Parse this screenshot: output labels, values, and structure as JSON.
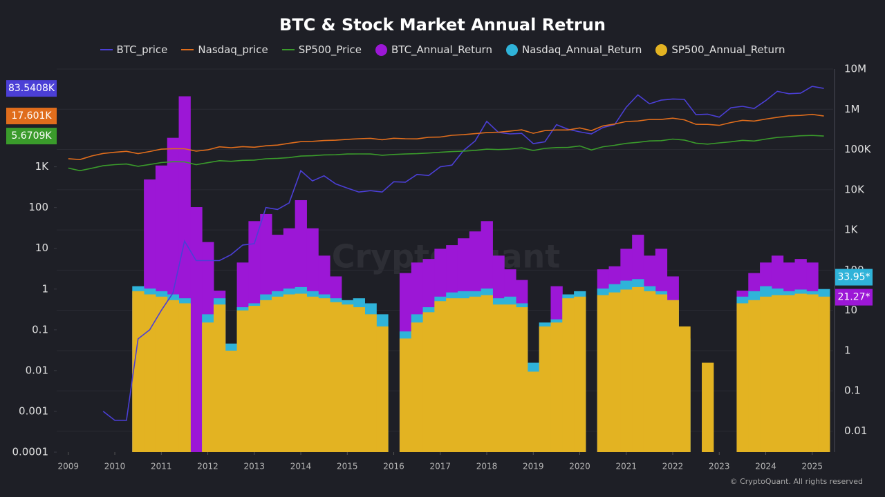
{
  "chart_data": {
    "type": "line",
    "title": "BTC & Stock Market Annual Retrun",
    "log_scale": true,
    "grid": true,
    "xlim": [
      2008.75,
      2025.45
    ],
    "xticks": [
      2009,
      2010,
      2011,
      2012,
      2013,
      2014,
      2015,
      2016,
      2017,
      2018,
      2019,
      2020,
      2021,
      2022,
      2023,
      2024,
      2025
    ],
    "ylim": [
      0.0001,
      250000
    ],
    "yticks": [
      0.0001,
      0.001,
      0.01,
      0.1,
      1,
      10,
      100,
      {
        "value": 1000,
        "label": "1K"
      }
    ],
    "y2lim": [
      0.003,
      10000000
    ],
    "y2ticks": [
      0.01,
      0.1,
      1,
      10,
      100,
      {
        "value": 1000,
        "label": "1K"
      },
      {
        "value": 10000,
        "label": "10K"
      },
      {
        "value": 100000,
        "label": "100K"
      },
      {
        "value": 1000000,
        "label": "1M"
      },
      {
        "value": 10000000,
        "label": "10M"
      }
    ],
    "x": [
      2009,
      2009.25,
      2009.5,
      2009.75,
      2010,
      2010.25,
      2010.5,
      2010.75,
      2011,
      2011.25,
      2011.5,
      2011.75,
      2012,
      2012.25,
      2012.5,
      2012.75,
      2013,
      2013.25,
      2013.5,
      2013.75,
      2014,
      2014.25,
      2014.5,
      2014.75,
      2015,
      2015.25,
      2015.5,
      2015.75,
      2016,
      2016.25,
      2016.5,
      2016.75,
      2017,
      2017.25,
      2017.5,
      2017.75,
      2018,
      2018.25,
      2018.5,
      2018.75,
      2019,
      2019.25,
      2019.5,
      2019.75,
      2020,
      2020.25,
      2020.5,
      2020.75,
      2021,
      2021.25,
      2021.5,
      2021.75,
      2022,
      2022.25,
      2022.5,
      2022.75,
      2023,
      2023.25,
      2023.5,
      2023.75,
      2024,
      2024.25,
      2024.5,
      2024.75,
      2025,
      2025.25
    ],
    "series": [
      {
        "name": "BTC_price",
        "type": "line",
        "axis": "y",
        "color": "#4b3fd6",
        "last_label": "83.5408K",
        "values": [
          null,
          null,
          null,
          0.001,
          0.0006,
          0.0006,
          0.06,
          0.1,
          0.3,
          0.8,
          15,
          5,
          5,
          5,
          7,
          12,
          13,
          100,
          90,
          130,
          800,
          450,
          600,
          380,
          300,
          240,
          260,
          240,
          430,
          420,
          650,
          610,
          1000,
          1100,
          2500,
          4300,
          13000,
          7000,
          6400,
          6600,
          3700,
          4100,
          10800,
          8300,
          7200,
          6400,
          9200,
          10800,
          29000,
          58000,
          35000,
          43000,
          46000,
          45000,
          19000,
          19500,
          16500,
          28000,
          30500,
          27000,
          42000,
          71000,
          62000,
          64000,
          94000,
          83540.8
        ]
      },
      {
        "name": "Nasdaq_price",
        "type": "line",
        "axis": "y",
        "color": "#e06d1c",
        "last_label": "17.601K",
        "values": [
          1580,
          1500,
          1840,
          2120,
          2270,
          2400,
          2110,
          2370,
          2700,
          2780,
          2770,
          2420,
          2600,
          3090,
          2930,
          3120,
          3020,
          3270,
          3400,
          3770,
          4140,
          4200,
          4410,
          4490,
          4700,
          4880,
          4990,
          4620,
          5000,
          4870,
          4840,
          5310,
          5380,
          5910,
          6140,
          6500,
          6900,
          7060,
          7510,
          8050,
          6640,
          7730,
          8000,
          8000,
          8970,
          7700,
          10060,
          11170,
          12900,
          13250,
          14500,
          14450,
          15600,
          14200,
          11000,
          10970,
          10390,
          12200,
          13800,
          13200,
          14800,
          16380,
          17880,
          18190,
          19300,
          17601
        ]
      },
      {
        "name": "SP500_Price",
        "type": "line",
        "axis": "y",
        "color": "#3a9b2b",
        "last_label": "5.6709K",
        "values": [
          930,
          800,
          920,
          1060,
          1130,
          1170,
          1030,
          1140,
          1270,
          1330,
          1320,
          1130,
          1260,
          1410,
          1360,
          1440,
          1460,
          1570,
          1610,
          1680,
          1830,
          1870,
          1960,
          1970,
          2060,
          2070,
          2060,
          1920,
          2000,
          2060,
          2100,
          2170,
          2270,
          2360,
          2420,
          2520,
          2700,
          2640,
          2720,
          2920,
          2500,
          2830,
          2960,
          2980,
          3250,
          2580,
          3100,
          3360,
          3750,
          3970,
          4300,
          4360,
          4770,
          4530,
          3790,
          3590,
          3850,
          4110,
          4450,
          4290,
          4770,
          5250,
          5480,
          5760,
          5880,
          5670.9
        ]
      },
      {
        "name": "BTC_Annual_Return",
        "type": "bar",
        "axis": "y2",
        "color": "#9c17d6",
        "last_label": "21.27*",
        "values": [
          null,
          null,
          null,
          null,
          null,
          null,
          20,
          18000,
          40000,
          195000,
          2100000,
          3700,
          500,
          31,
          null,
          155,
          1660,
          2500,
          760,
          1100,
          5500,
          1100,
          230,
          70,
          null,
          null,
          null,
          null,
          null,
          85,
          155,
          190,
          340,
          420,
          620,
          920,
          1660,
          230,
          105,
          57,
          null,
          null,
          40,
          null,
          null,
          null,
          105,
          125,
          340,
          760,
          230,
          340,
          70,
          null,
          null,
          null,
          null,
          null,
          31,
          85,
          155,
          230,
          155,
          190,
          155,
          21.27
        ]
      },
      {
        "name": "Nasdaq_Annual_Return",
        "type": "bar",
        "axis": "y2",
        "color": "#2fb3d9",
        "last_label": "33.95*",
        "values": [
          null,
          null,
          null,
          null,
          null,
          null,
          40,
          35,
          30,
          25,
          20,
          null,
          8,
          20,
          1.5,
          12,
          15,
          25,
          30,
          35,
          38,
          30,
          25,
          20,
          18,
          20,
          15,
          8,
          null,
          3,
          8,
          12,
          22,
          28,
          30,
          30,
          35,
          20,
          22,
          15,
          0.5,
          5,
          6,
          25,
          30,
          null,
          35,
          45,
          55,
          60,
          40,
          30,
          18,
          2,
          null,
          null,
          null,
          null,
          22,
          30,
          40,
          35,
          30,
          33,
          30,
          33.95
        ]
      },
      {
        "name": "SP500_Annual_Return",
        "type": "bar",
        "axis": "y2",
        "color": "#e3b322",
        "values": [
          null,
          null,
          null,
          null,
          null,
          null,
          30,
          25,
          22,
          18,
          15,
          null,
          5,
          14,
          1,
          10,
          13,
          18,
          22,
          25,
          26,
          22,
          20,
          16,
          14,
          12,
          8,
          4,
          null,
          2,
          5,
          9,
          17,
          20,
          20,
          22,
          24,
          14,
          14,
          12,
          0.3,
          4,
          5,
          20,
          22,
          null,
          24,
          28,
          33,
          38,
          30,
          25,
          18,
          4,
          null,
          0.5,
          null,
          null,
          15,
          18,
          22,
          24,
          24,
          26,
          25,
          22
        ]
      }
    ]
  },
  "watermark": "CryptoQuant",
  "footer": "© CryptoQuant. All rights reserved"
}
